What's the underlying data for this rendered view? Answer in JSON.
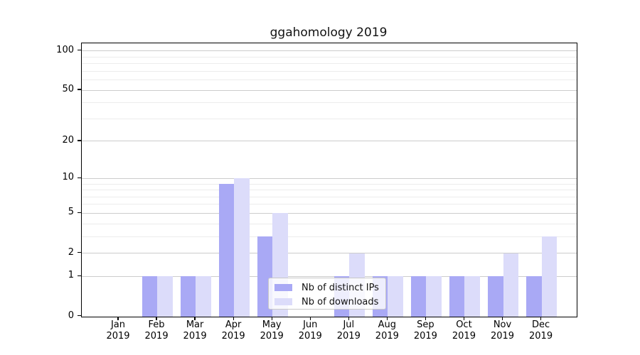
{
  "chart_data": {
    "type": "bar",
    "title": "ggahomology 2019",
    "categories": [
      "Jan 2019",
      "Feb 2019",
      "Mar 2019",
      "Apr 2019",
      "May 2019",
      "Jun 2019",
      "Jul 2019",
      "Aug 2019",
      "Sep 2019",
      "Oct 2019",
      "Nov 2019",
      "Dec 2019"
    ],
    "series": [
      {
        "name": "Nb of distinct IPs",
        "color": "#a9a9f5",
        "values": [
          0,
          1,
          1,
          9,
          3,
          0,
          1,
          1,
          1,
          1,
          1,
          1
        ]
      },
      {
        "name": "Nb of downloads",
        "color": "#dcdcfa",
        "values": [
          0,
          1,
          1,
          10,
          5,
          0,
          2,
          1,
          1,
          1,
          2,
          3
        ]
      }
    ],
    "xlabel": "",
    "ylabel": "",
    "yscale": "log1p",
    "ylim": [
      0,
      115
    ],
    "y_major_ticks": [
      0,
      1,
      2,
      5,
      10,
      20,
      50,
      100
    ],
    "y_minor_ticks": [
      3,
      4,
      6,
      7,
      8,
      9,
      30,
      40,
      60,
      70,
      80,
      90
    ],
    "grid": true,
    "legend_position": "inside-bottom-center"
  },
  "colors": {
    "grid_major": "#cccccc",
    "grid_minor": "#ececec",
    "axis": "#000000",
    "text": "#000000",
    "legend_border": "#c8c8c8",
    "background": "#ffffff"
  }
}
